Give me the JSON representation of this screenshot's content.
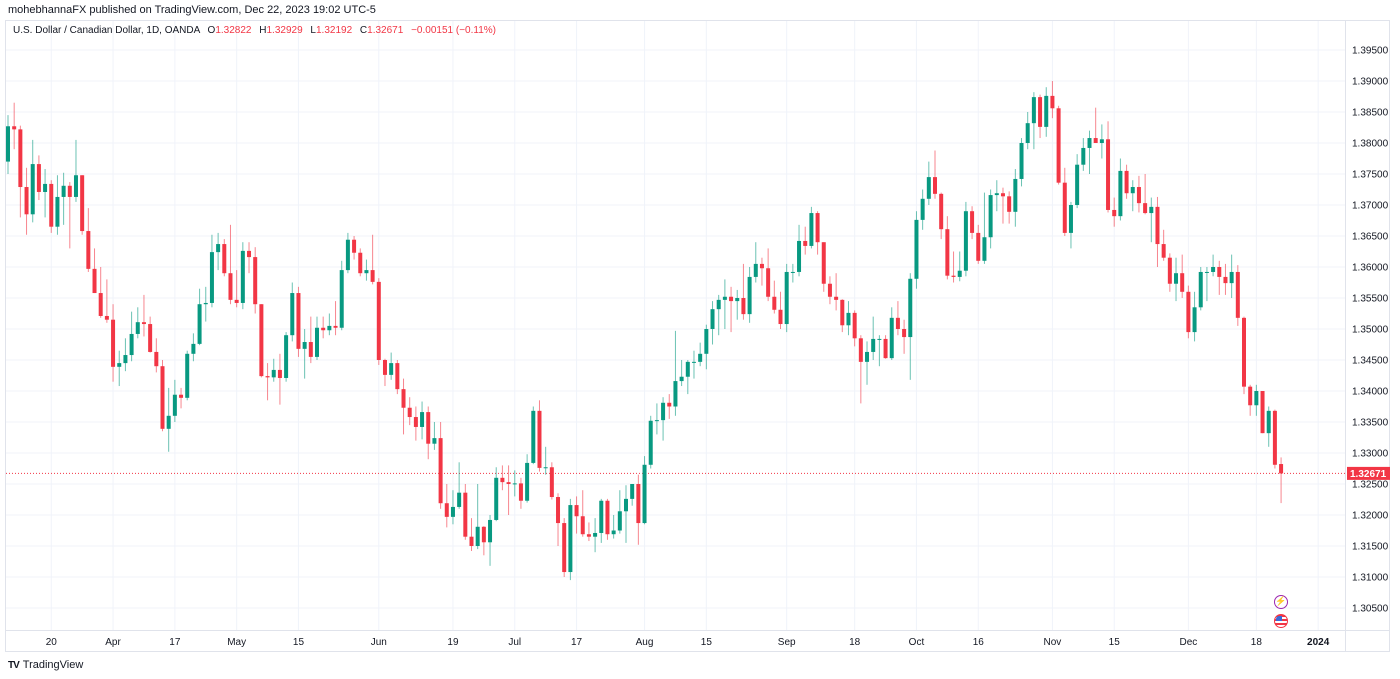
{
  "header": {
    "published": "mohebhannaFX published on TradingView.com, Dec 22, 2023 19:02 UTC-5"
  },
  "legend": {
    "symbol": "U.S. Dollar / Canadian Dollar, 1D, OANDA",
    "o_label": "O",
    "o": "1.32822",
    "h_label": "H",
    "h": "1.32929",
    "l_label": "L",
    "l": "1.32192",
    "c_label": "C",
    "c": "1.32671",
    "change": "−0.00151 (−0.11%)"
  },
  "footer": {
    "brand": "TradingView"
  },
  "icons": [
    "lightning-event-icon",
    "us-flag-icon"
  ],
  "colors": {
    "up": "#089981",
    "down": "#f23645",
    "grid": "#f0f3fa",
    "last_price": "#f23645",
    "event": "#9c27b0"
  },
  "chart_data": {
    "type": "candlestick",
    "title": "",
    "ylim": [
      1.3025,
      1.3985
    ],
    "y_ticks": [
      "1.39500",
      "1.39000",
      "1.38500",
      "1.38000",
      "1.37500",
      "1.37000",
      "1.36500",
      "1.36000",
      "1.35500",
      "1.35000",
      "1.34500",
      "1.34000",
      "1.33500",
      "1.33000",
      "1.32500",
      "1.32000",
      "1.31500",
      "1.31000",
      "1.30500"
    ],
    "last_price": "1.32671",
    "grid": true,
    "x_ticks": [
      {
        "label": "20",
        "bar": 7
      },
      {
        "label": "Apr",
        "bar": 17
      },
      {
        "label": "17",
        "bar": 27
      },
      {
        "label": "May",
        "bar": 37
      },
      {
        "label": "15",
        "bar": 47
      },
      {
        "label": "Jun",
        "bar": 60
      },
      {
        "label": "19",
        "bar": 72
      },
      {
        "label": "Jul",
        "bar": 82
      },
      {
        "label": "17",
        "bar": 92
      },
      {
        "label": "Aug",
        "bar": 103
      },
      {
        "label": "15",
        "bar": 113
      },
      {
        "label": "Sep",
        "bar": 126
      },
      {
        "label": "18",
        "bar": 137
      },
      {
        "label": "Oct",
        "bar": 147
      },
      {
        "label": "16",
        "bar": 157
      },
      {
        "label": "Nov",
        "bar": 169
      },
      {
        "label": "15",
        "bar": 179
      },
      {
        "label": "Dec",
        "bar": 191
      },
      {
        "label": "18",
        "bar": 202
      },
      {
        "label": "2024",
        "bar": 212
      }
    ],
    "ohlc": [
      [
        1.377,
        1.3845,
        1.375,
        1.3827
      ],
      [
        1.3827,
        1.3865,
        1.379,
        1.3822
      ],
      [
        1.3822,
        1.3828,
        1.368,
        1.3729
      ],
      [
        1.3729,
        1.376,
        1.3652,
        1.3685
      ],
      [
        1.3685,
        1.3805,
        1.3672,
        1.3766
      ],
      [
        1.3766,
        1.378,
        1.3708,
        1.3721
      ],
      [
        1.3721,
        1.3758,
        1.368,
        1.3734
      ],
      [
        1.3734,
        1.374,
        1.3655,
        1.3665
      ],
      [
        1.3665,
        1.3748,
        1.3652,
        1.3713
      ],
      [
        1.3713,
        1.3752,
        1.3668,
        1.3731
      ],
      [
        1.3731,
        1.3737,
        1.363,
        1.3713
      ],
      [
        1.3713,
        1.3805,
        1.3705,
        1.3748
      ],
      [
        1.3748,
        1.3748,
        1.3652,
        1.3658
      ],
      [
        1.3658,
        1.3695,
        1.3592,
        1.3597
      ],
      [
        1.3597,
        1.363,
        1.3558,
        1.3558
      ],
      [
        1.3558,
        1.36,
        1.3518,
        1.3521
      ],
      [
        1.3521,
        1.358,
        1.351,
        1.3515
      ],
      [
        1.3515,
        1.354,
        1.3415,
        1.3439
      ],
      [
        1.3439,
        1.3465,
        1.3408,
        1.3445
      ],
      [
        1.3445,
        1.3485,
        1.3432,
        1.3458
      ],
      [
        1.3458,
        1.3528,
        1.3448,
        1.3492
      ],
      [
        1.3492,
        1.3535,
        1.3485,
        1.3511
      ],
      [
        1.3511,
        1.3555,
        1.3488,
        1.3508
      ],
      [
        1.3508,
        1.352,
        1.3462,
        1.3463
      ],
      [
        1.3463,
        1.3485,
        1.343,
        1.344
      ],
      [
        1.344,
        1.345,
        1.3335,
        1.3339
      ],
      [
        1.3339,
        1.3405,
        1.3302,
        1.336
      ],
      [
        1.336,
        1.3418,
        1.335,
        1.3394
      ],
      [
        1.3394,
        1.3405,
        1.3372,
        1.3389
      ],
      [
        1.3389,
        1.3465,
        1.3385,
        1.346
      ],
      [
        1.346,
        1.3493,
        1.3448,
        1.3476
      ],
      [
        1.3476,
        1.3565,
        1.3474,
        1.354
      ],
      [
        1.354,
        1.3568,
        1.3512,
        1.3542
      ],
      [
        1.3542,
        1.3652,
        1.3535,
        1.3624
      ],
      [
        1.3624,
        1.3655,
        1.3595,
        1.3637
      ],
      [
        1.3637,
        1.3645,
        1.3585,
        1.359
      ],
      [
        1.359,
        1.3668,
        1.354,
        1.3547
      ],
      [
        1.3547,
        1.3595,
        1.3535,
        1.3542
      ],
      [
        1.3542,
        1.364,
        1.3532,
        1.3626
      ],
      [
        1.3626,
        1.364,
        1.359,
        1.3616
      ],
      [
        1.3616,
        1.3632,
        1.3525,
        1.354
      ],
      [
        1.354,
        1.354,
        1.3422,
        1.3424
      ],
      [
        1.3424,
        1.3445,
        1.3385,
        1.3422
      ],
      [
        1.3422,
        1.3452,
        1.3415,
        1.3434
      ],
      [
        1.3434,
        1.346,
        1.3378,
        1.3421
      ],
      [
        1.3421,
        1.3495,
        1.3415,
        1.349
      ],
      [
        1.349,
        1.3575,
        1.348,
        1.3558
      ],
      [
        1.3558,
        1.3568,
        1.3455,
        1.3468
      ],
      [
        1.3468,
        1.35,
        1.342,
        1.3479
      ],
      [
        1.3479,
        1.352,
        1.3445,
        1.3455
      ],
      [
        1.3455,
        1.352,
        1.345,
        1.3502
      ],
      [
        1.3502,
        1.352,
        1.3485,
        1.3498
      ],
      [
        1.3498,
        1.3525,
        1.349,
        1.3505
      ],
      [
        1.3505,
        1.3545,
        1.349,
        1.3502
      ],
      [
        1.3502,
        1.361,
        1.3498,
        1.3595
      ],
      [
        1.3595,
        1.3655,
        1.359,
        1.3644
      ],
      [
        1.3644,
        1.365,
        1.3612,
        1.3623
      ],
      [
        1.3623,
        1.363,
        1.3585,
        1.359
      ],
      [
        1.359,
        1.3612,
        1.3578,
        1.3595
      ],
      [
        1.3595,
        1.3652,
        1.3572,
        1.3576
      ],
      [
        1.3576,
        1.3582,
        1.3442,
        1.345
      ],
      [
        1.345,
        1.3452,
        1.3408,
        1.3426
      ],
      [
        1.3426,
        1.3462,
        1.3418,
        1.3445
      ],
      [
        1.3445,
        1.345,
        1.3395,
        1.3403
      ],
      [
        1.3403,
        1.342,
        1.333,
        1.3373
      ],
      [
        1.3373,
        1.339,
        1.3345,
        1.3358
      ],
      [
        1.3358,
        1.3375,
        1.332,
        1.3342
      ],
      [
        1.3342,
        1.3383,
        1.3322,
        1.3366
      ],
      [
        1.3366,
        1.3375,
        1.329,
        1.3315
      ],
      [
        1.3315,
        1.335,
        1.3305,
        1.3324
      ],
      [
        1.3324,
        1.335,
        1.321,
        1.3219
      ],
      [
        1.3219,
        1.325,
        1.318,
        1.3197
      ],
      [
        1.3197,
        1.324,
        1.3185,
        1.3213
      ],
      [
        1.3213,
        1.3285,
        1.321,
        1.3236
      ],
      [
        1.3236,
        1.325,
        1.316,
        1.3165
      ],
      [
        1.3165,
        1.3195,
        1.3142,
        1.315
      ],
      [
        1.315,
        1.325,
        1.3145,
        1.3181
      ],
      [
        1.3181,
        1.3182,
        1.3135,
        1.3156
      ],
      [
        1.3156,
        1.32,
        1.3118,
        1.3192
      ],
      [
        1.3192,
        1.3277,
        1.319,
        1.326
      ],
      [
        1.326,
        1.328,
        1.324,
        1.3253
      ],
      [
        1.3253,
        1.328,
        1.32,
        1.325
      ],
      [
        1.325,
        1.3272,
        1.323,
        1.3251
      ],
      [
        1.3251,
        1.326,
        1.321,
        1.3223
      ],
      [
        1.3223,
        1.3298,
        1.322,
        1.3284
      ],
      [
        1.3284,
        1.3375,
        1.3282,
        1.3368
      ],
      [
        1.3368,
        1.3385,
        1.327,
        1.3276
      ],
      [
        1.3276,
        1.331,
        1.3265,
        1.3277
      ],
      [
        1.3277,
        1.3285,
        1.3225,
        1.3229
      ],
      [
        1.3229,
        1.3235,
        1.315,
        1.3187
      ],
      [
        1.3187,
        1.3195,
        1.31,
        1.3108
      ],
      [
        1.3108,
        1.3226,
        1.3095,
        1.3216
      ],
      [
        1.3216,
        1.323,
        1.317,
        1.3198
      ],
      [
        1.3198,
        1.324,
        1.3165,
        1.3169
      ],
      [
        1.3169,
        1.3188,
        1.3158,
        1.3165
      ],
      [
        1.3165,
        1.3195,
        1.314,
        1.3171
      ],
      [
        1.3171,
        1.3226,
        1.3155,
        1.3223
      ],
      [
        1.3223,
        1.3226,
        1.316,
        1.3169
      ],
      [
        1.3169,
        1.32,
        1.3162,
        1.3175
      ],
      [
        1.3175,
        1.324,
        1.317,
        1.3206
      ],
      [
        1.3206,
        1.3248,
        1.3155,
        1.3226
      ],
      [
        1.3226,
        1.325,
        1.3215,
        1.325
      ],
      [
        1.325,
        1.3265,
        1.3152,
        1.3187
      ],
      [
        1.3187,
        1.3295,
        1.3185,
        1.3281
      ],
      [
        1.3281,
        1.336,
        1.3275,
        1.3352
      ],
      [
        1.3352,
        1.338,
        1.333,
        1.3353
      ],
      [
        1.3353,
        1.339,
        1.332,
        1.3381
      ],
      [
        1.3381,
        1.3395,
        1.3355,
        1.3375
      ],
      [
        1.3375,
        1.3497,
        1.336,
        1.3416
      ],
      [
        1.3416,
        1.345,
        1.3408,
        1.3423
      ],
      [
        1.3423,
        1.345,
        1.3395,
        1.3447
      ],
      [
        1.3447,
        1.3465,
        1.342,
        1.3447
      ],
      [
        1.3447,
        1.3478,
        1.344,
        1.346
      ],
      [
        1.346,
        1.3507,
        1.3435,
        1.35
      ],
      [
        1.35,
        1.3545,
        1.3475,
        1.3532
      ],
      [
        1.3532,
        1.3555,
        1.349,
        1.3547
      ],
      [
        1.3547,
        1.358,
        1.35,
        1.3552
      ],
      [
        1.3552,
        1.3568,
        1.3495,
        1.3545
      ],
      [
        1.3545,
        1.3563,
        1.3515,
        1.355
      ],
      [
        1.355,
        1.3605,
        1.3515,
        1.3524
      ],
      [
        1.3524,
        1.36,
        1.351,
        1.3584
      ],
      [
        1.3584,
        1.364,
        1.3575,
        1.3605
      ],
      [
        1.3605,
        1.3615,
        1.357,
        1.3598
      ],
      [
        1.3598,
        1.363,
        1.3545,
        1.3552
      ],
      [
        1.3552,
        1.3578,
        1.3525,
        1.3531
      ],
      [
        1.3531,
        1.356,
        1.35,
        1.3508
      ],
      [
        1.3508,
        1.3605,
        1.3495,
        1.3592
      ],
      [
        1.3592,
        1.3605,
        1.3575,
        1.3592
      ],
      [
        1.3592,
        1.3668,
        1.3585,
        1.3642
      ],
      [
        1.3642,
        1.3665,
        1.362,
        1.3634
      ],
      [
        1.3634,
        1.3697,
        1.363,
        1.3687
      ],
      [
        1.3687,
        1.369,
        1.362,
        1.364
      ],
      [
        1.364,
        1.364,
        1.356,
        1.3573
      ],
      [
        1.3573,
        1.3585,
        1.354,
        1.3552
      ],
      [
        1.3552,
        1.359,
        1.353,
        1.3547
      ],
      [
        1.3547,
        1.3548,
        1.3495,
        1.3506
      ],
      [
        1.3506,
        1.3545,
        1.349,
        1.3526
      ],
      [
        1.3526,
        1.353,
        1.3472,
        1.3485
      ],
      [
        1.3485,
        1.349,
        1.338,
        1.3447
      ],
      [
        1.3447,
        1.348,
        1.341,
        1.3463
      ],
      [
        1.3463,
        1.352,
        1.345,
        1.3484
      ],
      [
        1.3484,
        1.349,
        1.344,
        1.3484
      ],
      [
        1.3484,
        1.349,
        1.3452,
        1.3453
      ],
      [
        1.3453,
        1.3535,
        1.345,
        1.3518
      ],
      [
        1.3518,
        1.3545,
        1.349,
        1.35
      ],
      [
        1.35,
        1.3515,
        1.346,
        1.3487
      ],
      [
        1.3487,
        1.359,
        1.3418,
        1.3581
      ],
      [
        1.3581,
        1.369,
        1.3565,
        1.3676
      ],
      [
        1.3676,
        1.3725,
        1.366,
        1.371
      ],
      [
        1.371,
        1.377,
        1.37,
        1.3745
      ],
      [
        1.3745,
        1.3788,
        1.371,
        1.3718
      ],
      [
        1.3718,
        1.372,
        1.3645,
        1.3661
      ],
      [
        1.3661,
        1.3682,
        1.358,
        1.3586
      ],
      [
        1.3586,
        1.3625,
        1.3575,
        1.3584
      ],
      [
        1.3584,
        1.3625,
        1.3577,
        1.3594
      ],
      [
        1.3594,
        1.3705,
        1.3585,
        1.369
      ],
      [
        1.369,
        1.3698,
        1.3645,
        1.3655
      ],
      [
        1.3655,
        1.3668,
        1.3605,
        1.361
      ],
      [
        1.361,
        1.372,
        1.3605,
        1.3648
      ],
      [
        1.3648,
        1.3725,
        1.363,
        1.3716
      ],
      [
        1.3716,
        1.374,
        1.369,
        1.3719
      ],
      [
        1.3719,
        1.3728,
        1.367,
        1.3714
      ],
      [
        1.3714,
        1.3722,
        1.367,
        1.3689
      ],
      [
        1.3689,
        1.3758,
        1.3665,
        1.3742
      ],
      [
        1.3742,
        1.3808,
        1.373,
        1.38
      ],
      [
        1.38,
        1.385,
        1.379,
        1.3832
      ],
      [
        1.3832,
        1.3882,
        1.379,
        1.3874
      ],
      [
        1.3874,
        1.3878,
        1.3808,
        1.3826
      ],
      [
        1.3826,
        1.389,
        1.381,
        1.3876
      ],
      [
        1.3876,
        1.39,
        1.384,
        1.3856
      ],
      [
        1.3856,
        1.386,
        1.3733,
        1.3736
      ],
      [
        1.3736,
        1.376,
        1.365,
        1.3655
      ],
      [
        1.3655,
        1.3705,
        1.363,
        1.37
      ],
      [
        1.37,
        1.3782,
        1.3695,
        1.3765
      ],
      [
        1.3765,
        1.3808,
        1.3755,
        1.3792
      ],
      [
        1.3792,
        1.382,
        1.375,
        1.3808
      ],
      [
        1.3808,
        1.3857,
        1.38,
        1.38
      ],
      [
        1.38,
        1.383,
        1.3775,
        1.3806
      ],
      [
        1.3806,
        1.3835,
        1.3688,
        1.3692
      ],
      [
        1.3692,
        1.3712,
        1.3665,
        1.3682
      ],
      [
        1.3682,
        1.3775,
        1.3675,
        1.3755
      ],
      [
        1.3755,
        1.3765,
        1.371,
        1.3719
      ],
      [
        1.3719,
        1.374,
        1.369,
        1.3729
      ],
      [
        1.3729,
        1.3747,
        1.3688,
        1.3703
      ],
      [
        1.3703,
        1.375,
        1.3685,
        1.3687
      ],
      [
        1.3687,
        1.3712,
        1.364,
        1.3697
      ],
      [
        1.3697,
        1.3713,
        1.36,
        1.3637
      ],
      [
        1.3637,
        1.366,
        1.361,
        1.3615
      ],
      [
        1.3615,
        1.3622,
        1.356,
        1.3573
      ],
      [
        1.3573,
        1.3615,
        1.3545,
        1.359
      ],
      [
        1.359,
        1.362,
        1.355,
        1.356
      ],
      [
        1.356,
        1.357,
        1.3485,
        1.3495
      ],
      [
        1.3495,
        1.356,
        1.348,
        1.3535
      ],
      [
        1.3535,
        1.36,
        1.353,
        1.3592
      ],
      [
        1.3592,
        1.36,
        1.3545,
        1.3592
      ],
      [
        1.3592,
        1.362,
        1.3585,
        1.36
      ],
      [
        1.36,
        1.361,
        1.3555,
        1.3584
      ],
      [
        1.3584,
        1.3605,
        1.3555,
        1.3574
      ],
      [
        1.3574,
        1.362,
        1.355,
        1.3592
      ],
      [
        1.3592,
        1.3603,
        1.3505,
        1.3518
      ],
      [
        1.3518,
        1.352,
        1.3395,
        1.3407
      ],
      [
        1.3407,
        1.341,
        1.336,
        1.3377
      ],
      [
        1.3377,
        1.341,
        1.336,
        1.34
      ],
      [
        1.34,
        1.34,
        1.3332,
        1.3332
      ],
      [
        1.3332,
        1.3375,
        1.331,
        1.3368
      ],
      [
        1.3368,
        1.337,
        1.3275,
        1.3281
      ],
      [
        1.32822,
        1.32929,
        1.32192,
        1.32671
      ]
    ]
  }
}
